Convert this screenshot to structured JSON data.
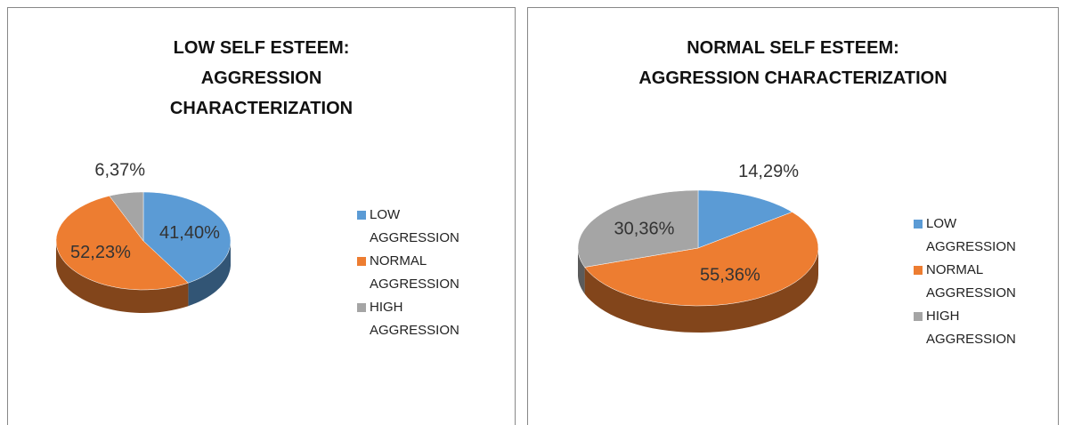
{
  "chart_data": [
    {
      "type": "pie",
      "title": "LOW SELF ESTEEM: AGGRESSION CHARACTERIZATION",
      "categories": [
        "LOW AGGRESSION",
        "NORMAL AGGRESSION",
        "HIGH AGGRESSION"
      ],
      "values": [
        41.4,
        52.23,
        6.37
      ],
      "value_labels": [
        "41,40%",
        "52,23%",
        "6,37%"
      ],
      "colors": [
        "#5b9bd5",
        "#ed7d31",
        "#a5a5a5"
      ],
      "legend": "right"
    },
    {
      "type": "pie",
      "title": "NORMAL SELF ESTEEM: AGGRESSION CHARACTERIZATION",
      "categories": [
        "LOW AGGRESSION",
        "NORMAL AGGRESSION",
        "HIGH AGGRESSION"
      ],
      "values": [
        14.29,
        55.36,
        30.36
      ],
      "value_labels": [
        "14,29%",
        "55,36%",
        "30,36%"
      ],
      "colors": [
        "#5b9bd5",
        "#ed7d31",
        "#a5a5a5"
      ],
      "legend": "right"
    }
  ]
}
